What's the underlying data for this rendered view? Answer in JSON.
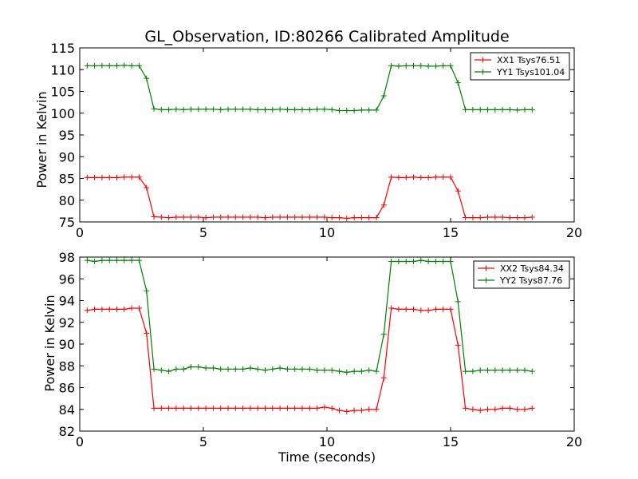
{
  "chart_data": [
    {
      "type": "line",
      "title": "GL_Observation, ID:80266 Calibrated Amplitude",
      "xlabel": "",
      "ylabel": "Power in Kelvin",
      "xlim": [
        0,
        20
      ],
      "ylim": [
        75,
        115
      ],
      "xticks": [
        "0",
        "5",
        "10",
        "15",
        "20"
      ],
      "yticks": [
        "75",
        "80",
        "85",
        "90",
        "95",
        "100",
        "105",
        "110",
        "115"
      ],
      "grid": false,
      "legend_position": "top-right",
      "x": [
        0.3,
        0.6,
        0.9,
        1.2,
        1.5,
        1.8,
        2.1,
        2.4,
        2.7,
        3.0,
        3.3,
        3.6,
        3.9,
        4.2,
        4.5,
        4.8,
        5.1,
        5.4,
        5.7,
        6.0,
        6.3,
        6.6,
        6.9,
        7.2,
        7.5,
        7.8,
        8.1,
        8.4,
        8.7,
        9.0,
        9.3,
        9.6,
        9.9,
        10.2,
        10.5,
        10.8,
        11.1,
        11.4,
        11.7,
        12.0,
        12.3,
        12.6,
        12.9,
        13.2,
        13.5,
        13.8,
        14.1,
        14.4,
        14.7,
        15.0,
        15.3,
        15.6,
        15.9,
        16.2,
        16.5,
        16.8,
        17.1,
        17.4,
        17.7,
        18.0,
        18.3
      ],
      "series": [
        {
          "name": "XX1 Tsys76.51",
          "color": "#ff0000",
          "values": [
            85.2,
            85.2,
            85.2,
            85.2,
            85.2,
            85.3,
            85.3,
            85.3,
            82.9,
            76.2,
            76.1,
            76.0,
            76.1,
            76.1,
            76.1,
            76.1,
            76.0,
            76.1,
            76.1,
            76.1,
            76.1,
            76.1,
            76.1,
            76.1,
            76.0,
            76.1,
            76.1,
            76.1,
            76.1,
            76.1,
            76.1,
            76.1,
            76.1,
            76.0,
            76.0,
            75.8,
            76.0,
            76.0,
            76.0,
            76.0,
            78.9,
            85.3,
            85.2,
            85.2,
            85.3,
            85.2,
            85.2,
            85.3,
            85.3,
            85.3,
            82.1,
            76.0,
            76.0,
            76.0,
            76.1,
            76.1,
            76.1,
            76.0,
            76.0,
            76.0,
            76.1
          ]
        },
        {
          "name": "YY1 Tsys101.04",
          "color": "#008000",
          "values": [
            110.9,
            110.9,
            110.9,
            110.9,
            110.9,
            111.0,
            110.9,
            110.9,
            108.0,
            101.0,
            100.8,
            100.8,
            100.9,
            100.8,
            100.9,
            100.9,
            100.9,
            100.9,
            100.8,
            100.9,
            100.9,
            100.9,
            100.9,
            100.8,
            100.8,
            100.8,
            100.9,
            100.8,
            100.8,
            100.8,
            100.8,
            100.9,
            100.9,
            100.8,
            100.6,
            100.6,
            100.6,
            100.7,
            100.7,
            100.7,
            104.0,
            110.9,
            110.8,
            110.9,
            110.9,
            110.9,
            110.8,
            110.8,
            110.9,
            110.9,
            107.0,
            100.8,
            100.8,
            100.8,
            100.8,
            100.8,
            100.8,
            100.8,
            100.7,
            100.8,
            100.8
          ]
        }
      ]
    },
    {
      "type": "line",
      "title": "",
      "xlabel": "Time (seconds)",
      "ylabel": "Power in Kelvin",
      "xlim": [
        0,
        20
      ],
      "ylim": [
        82,
        98
      ],
      "xticks": [
        "0",
        "5",
        "10",
        "15",
        "20"
      ],
      "yticks": [
        "82",
        "84",
        "86",
        "88",
        "90",
        "92",
        "94",
        "96",
        "98"
      ],
      "grid": false,
      "legend_position": "top-right",
      "x": [
        0.3,
        0.6,
        0.9,
        1.2,
        1.5,
        1.8,
        2.1,
        2.4,
        2.7,
        3.0,
        3.3,
        3.6,
        3.9,
        4.2,
        4.5,
        4.8,
        5.1,
        5.4,
        5.7,
        6.0,
        6.3,
        6.6,
        6.9,
        7.2,
        7.5,
        7.8,
        8.1,
        8.4,
        8.7,
        9.0,
        9.3,
        9.6,
        9.9,
        10.2,
        10.5,
        10.8,
        11.1,
        11.4,
        11.7,
        12.0,
        12.3,
        12.6,
        12.9,
        13.2,
        13.5,
        13.8,
        14.1,
        14.4,
        14.7,
        15.0,
        15.3,
        15.6,
        15.9,
        16.2,
        16.5,
        16.8,
        17.1,
        17.4,
        17.7,
        18.0,
        18.3
      ],
      "series": [
        {
          "name": "XX2 Tsys84.34",
          "color": "#ff0000",
          "values": [
            93.1,
            93.2,
            93.2,
            93.2,
            93.2,
            93.2,
            93.3,
            93.3,
            91.0,
            84.1,
            84.1,
            84.1,
            84.1,
            84.1,
            84.1,
            84.1,
            84.1,
            84.1,
            84.1,
            84.1,
            84.1,
            84.1,
            84.1,
            84.1,
            84.1,
            84.1,
            84.1,
            84.1,
            84.1,
            84.1,
            84.1,
            84.1,
            84.2,
            84.1,
            83.9,
            83.8,
            83.9,
            83.9,
            84.0,
            84.0,
            86.9,
            93.3,
            93.2,
            93.2,
            93.2,
            93.1,
            93.1,
            93.2,
            93.2,
            93.2,
            89.9,
            84.1,
            84.0,
            83.9,
            84.0,
            84.0,
            84.1,
            84.1,
            84.0,
            84.0,
            84.1
          ]
        },
        {
          "name": "YY2 Tsys87.76",
          "color": "#008000",
          "values": [
            97.7,
            97.6,
            97.7,
            97.7,
            97.7,
            97.7,
            97.7,
            97.7,
            94.9,
            87.7,
            87.6,
            87.5,
            87.7,
            87.7,
            87.9,
            87.9,
            87.8,
            87.8,
            87.7,
            87.7,
            87.7,
            87.7,
            87.8,
            87.7,
            87.6,
            87.7,
            87.8,
            87.7,
            87.7,
            87.7,
            87.7,
            87.6,
            87.6,
            87.6,
            87.5,
            87.4,
            87.5,
            87.5,
            87.6,
            87.5,
            90.9,
            97.6,
            97.6,
            97.6,
            97.6,
            97.7,
            97.6,
            97.6,
            97.6,
            97.6,
            93.9,
            87.5,
            87.5,
            87.6,
            87.6,
            87.6,
            87.6,
            87.6,
            87.6,
            87.6,
            87.5
          ]
        }
      ]
    }
  ]
}
